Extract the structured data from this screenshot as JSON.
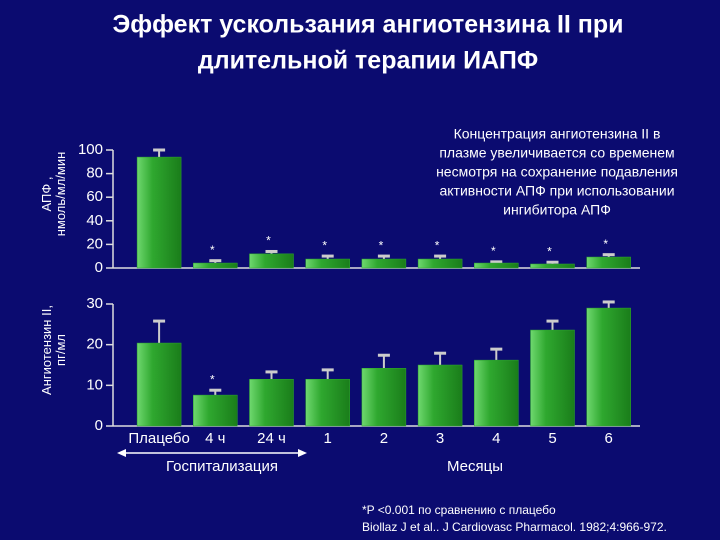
{
  "title": [
    "Эффект ускользания ангиотензина II при",
    "длительной терапии ИАПФ"
  ],
  "annotation": [
    "Концентрация ангиотензина II в",
    "плазме увеличивается со временем",
    "несмотря на сохранение подавления",
    "активности АПФ при использовании",
    "ингибитора АПФ"
  ],
  "groups": [
    "Госпитализация",
    "Месяцы"
  ],
  "footnote": [
    "*P <0.001 по сравнению с плацебо",
    "Biollaz J et al.. J Cardiovasc Pharmacol. 1982;4:966-972."
  ],
  "chart_data": [
    {
      "type": "bar",
      "ylabel": [
        "АПФ ,",
        "нмоль/мл/мин"
      ],
      "categories": [
        null,
        null,
        null,
        null,
        null,
        null,
        null,
        null,
        null
      ],
      "series": [
        {
          "color": "#2fa82f",
          "values": [
            94,
            4.2,
            12,
            7.6,
            7.6,
            7.6,
            4.2,
            3.4,
            9.3
          ],
          "errors": [
            6,
            2,
            2,
            2.5,
            2.5,
            2.5,
            1,
            1.5,
            2
          ],
          "significance": [
            null,
            "*",
            "*",
            "*",
            "*",
            "*",
            "*",
            "*",
            "*"
          ]
        }
      ],
      "ylim": [
        0,
        100
      ],
      "yticks": [
        0,
        20,
        40,
        60,
        80,
        100
      ]
    },
    {
      "type": "bar",
      "ylabel": [
        "Ангиотензин II,",
        "пг/мл"
      ],
      "categories": [
        "Плацебо",
        "4 ч",
        "24 ч",
        "1",
        "2",
        "3",
        "4",
        "5",
        "6"
      ],
      "series": [
        {
          "color": "#2fa82f",
          "values": [
            20.4,
            7.6,
            11.5,
            11.5,
            14.2,
            15,
            16.2,
            23.6,
            29
          ],
          "errors": [
            5.4,
            1.2,
            1.8,
            2.3,
            3.2,
            2.9,
            2.7,
            2.2,
            1.5
          ],
          "significance": [
            null,
            "*",
            null,
            null,
            null,
            null,
            null,
            null,
            null
          ]
        }
      ],
      "ylim": [
        0,
        30
      ],
      "yticks": [
        0,
        10,
        20,
        30
      ]
    }
  ]
}
